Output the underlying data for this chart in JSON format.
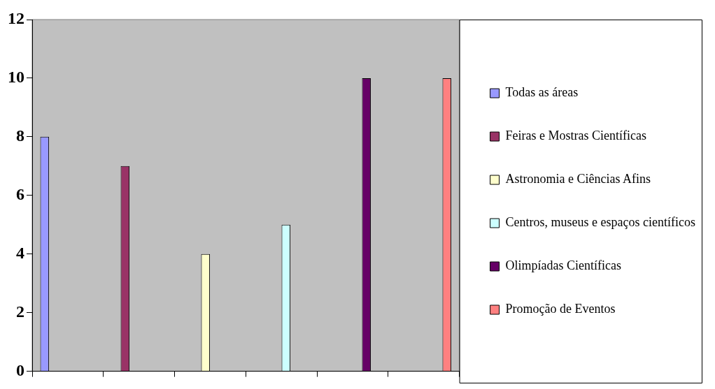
{
  "chart_data": {
    "type": "bar",
    "categories": [
      null,
      null,
      null,
      null,
      null,
      null
    ],
    "series": [
      {
        "name": "Todas as áreas",
        "color": "#9999ff",
        "values": [
          8,
          null,
          null,
          null,
          null,
          null
        ]
      },
      {
        "name": "Feiras e Mostras Científicas",
        "color": "#993366",
        "values": [
          null,
          7,
          null,
          null,
          null,
          null
        ]
      },
      {
        "name": "Astronomia e Ciências Afins",
        "color": "#ffffcc",
        "values": [
          null,
          null,
          4,
          null,
          null,
          null
        ]
      },
      {
        "name": "Centros, museus e espaços científicos",
        "color": "#ccffff",
        "values": [
          null,
          null,
          null,
          5,
          null,
          null
        ]
      },
      {
        "name": "Olimpíadas Científicas",
        "color": "#660066",
        "values": [
          null,
          null,
          null,
          null,
          10,
          null
        ]
      },
      {
        "name": "Promoção de Eventos",
        "color": "#ff8080",
        "values": [
          null,
          null,
          null,
          null,
          null,
          10
        ]
      }
    ],
    "ylim": [
      0,
      12
    ],
    "yticks": [
      0,
      2,
      4,
      6,
      8,
      10,
      12
    ],
    "grid": false,
    "legend": "right"
  }
}
